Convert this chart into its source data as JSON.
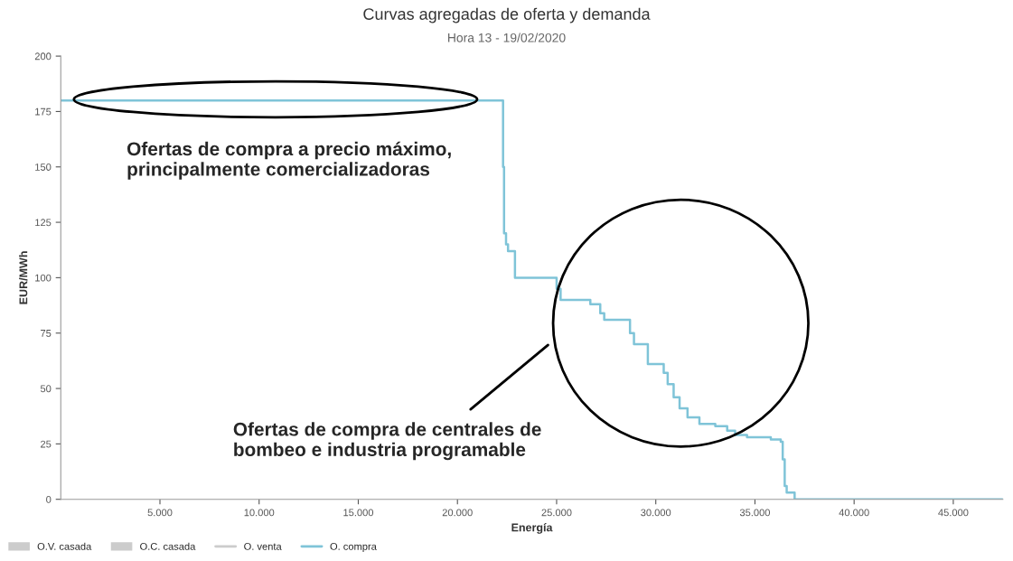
{
  "chart_data": {
    "type": "step",
    "title": "Curvas agregadas de oferta y demanda",
    "subtitle": "Hora 13 - 19/02/2020",
    "xlabel": "Energía",
    "ylabel": "EUR/MWh",
    "xlim": [
      0,
      47500
    ],
    "ylim": [
      0,
      200
    ],
    "xticks": [
      {
        "value": 5000,
        "label": "5.000"
      },
      {
        "value": 10000,
        "label": "10.000"
      },
      {
        "value": 15000,
        "label": "15.000"
      },
      {
        "value": 20000,
        "label": "20.000"
      },
      {
        "value": 25000,
        "label": "25.000"
      },
      {
        "value": 30000,
        "label": "30.000"
      },
      {
        "value": 35000,
        "label": "35.000"
      },
      {
        "value": 40000,
        "label": "40.000"
      },
      {
        "value": 45000,
        "label": "45.000"
      }
    ],
    "yticks": [
      0,
      25,
      50,
      75,
      100,
      125,
      150,
      175,
      200
    ],
    "series": [
      {
        "name": "O.V. casada",
        "type": "bar",
        "color": "#cccccc"
      },
      {
        "name": "O.C. casada",
        "type": "bar",
        "color": "#cccccc"
      },
      {
        "name": "O. venta",
        "type": "line",
        "color": "#cccccc"
      },
      {
        "name": "O. compra",
        "color": "#7fc4d8",
        "x": [
          0,
          22300,
          22350,
          22450,
          22550,
          22900,
          25000,
          25200,
          26700,
          27200,
          27400,
          28700,
          28900,
          29600,
          30400,
          30600,
          30900,
          31200,
          31600,
          32200,
          33000,
          33600,
          34000,
          34600,
          35800,
          36300,
          36400,
          36500,
          36600,
          37000,
          47500
        ],
        "values": [
          180,
          150,
          120,
          115,
          112,
          100,
          95,
          90,
          88,
          84,
          81,
          75,
          70,
          61,
          57,
          52,
          46,
          41,
          37,
          34,
          33,
          31,
          29,
          28,
          27,
          26,
          18,
          6,
          3,
          0,
          0
        ]
      }
    ],
    "legend": "bottom left",
    "grid": false,
    "annotations": [
      "Ofertas de compra a precio máximo,\nprincipalmente comercializadoras",
      "Ofertas de compra de centrales de\nbombeo e industria programable"
    ]
  }
}
